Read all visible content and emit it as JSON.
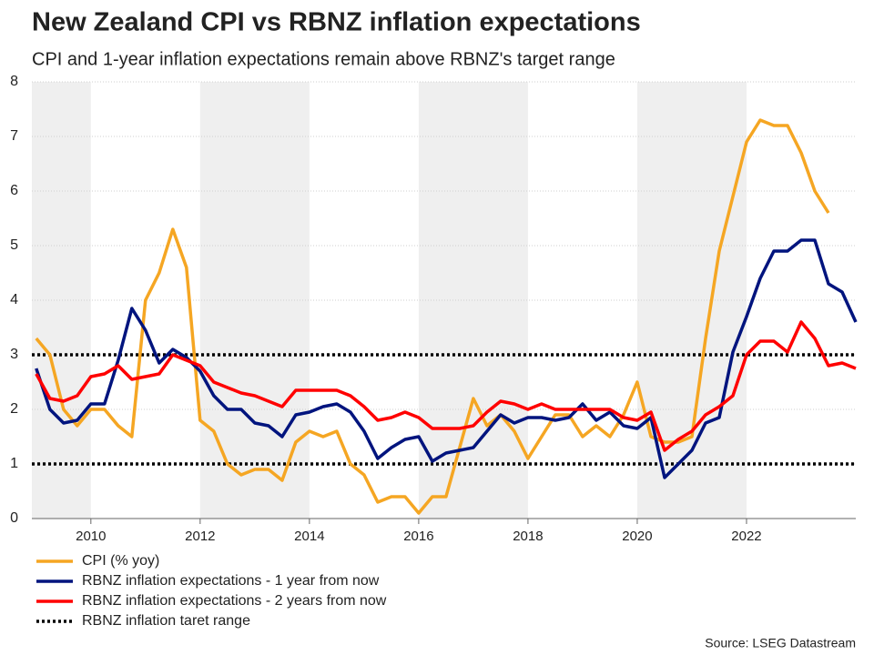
{
  "chart_data": {
    "type": "line",
    "title": "New Zealand CPI vs RBNZ inflation expectations",
    "subtitle": "CPI and 1-year inflation expectations remain above RBNZ's target range",
    "source": "Source: LSEG Datastream",
    "x": [
      2009,
      2009.25,
      2009.5,
      2009.75,
      2010,
      2010.25,
      2010.5,
      2010.75,
      2011,
      2011.25,
      2011.5,
      2011.75,
      2012,
      2012.25,
      2012.5,
      2012.75,
      2013,
      2013.25,
      2013.5,
      2013.75,
      2014,
      2014.25,
      2014.5,
      2014.75,
      2015,
      2015.25,
      2015.5,
      2015.75,
      2016,
      2016.25,
      2016.5,
      2016.75,
      2017,
      2017.25,
      2017.5,
      2017.75,
      2018,
      2018.25,
      2018.5,
      2018.75,
      2019,
      2019.25,
      2019.5,
      2019.75,
      2020,
      2020.25,
      2020.5,
      2020.75,
      2021,
      2021.25,
      2021.5,
      2021.75,
      2022,
      2022.25,
      2022.5,
      2022.75,
      2023,
      2023.25,
      2023.5,
      2023.75,
      2024
    ],
    "series": [
      {
        "name": "CPI (% yoy)",
        "color": "#f5a623",
        "values": [
          3.3,
          3.0,
          2.0,
          1.7,
          2.0,
          2.0,
          1.7,
          1.5,
          4.0,
          4.5,
          5.3,
          4.6,
          1.8,
          1.6,
          1.0,
          0.8,
          0.9,
          0.9,
          0.7,
          1.4,
          1.6,
          1.5,
          1.6,
          1.0,
          0.8,
          0.3,
          0.4,
          0.4,
          0.1,
          0.4,
          0.4,
          1.3,
          2.2,
          1.7,
          1.9,
          1.6,
          1.1,
          1.5,
          1.9,
          1.9,
          1.5,
          1.7,
          1.5,
          1.9,
          2.5,
          1.5,
          1.4,
          1.4,
          1.5,
          3.3,
          4.9,
          5.9,
          6.9,
          7.3,
          7.2,
          7.2,
          6.7,
          6.0,
          5.6,
          null,
          null
        ]
      },
      {
        "name": "RBNZ inflation expectations - 1 year from now",
        "color": "#00147e",
        "values": [
          2.75,
          2.0,
          1.75,
          1.8,
          2.1,
          2.1,
          2.9,
          3.85,
          3.45,
          2.85,
          3.1,
          2.95,
          2.7,
          2.25,
          2.0,
          2.0,
          1.75,
          1.7,
          1.5,
          1.9,
          1.95,
          2.05,
          2.1,
          1.95,
          1.6,
          1.1,
          1.3,
          1.45,
          1.5,
          1.05,
          1.2,
          1.25,
          1.3,
          1.6,
          1.9,
          1.75,
          1.85,
          1.85,
          1.8,
          1.85,
          2.1,
          1.8,
          1.95,
          1.7,
          1.65,
          1.85,
          0.75,
          1.0,
          1.25,
          1.75,
          1.85,
          3.05,
          3.7,
          4.4,
          4.9,
          4.9,
          5.1,
          5.1,
          4.3,
          4.15,
          3.6
        ]
      },
      {
        "name": "RBNZ inflation expectations - 2 years from now",
        "color": "#ff0000",
        "values": [
          2.65,
          2.2,
          2.15,
          2.25,
          2.6,
          2.65,
          2.8,
          2.55,
          2.6,
          2.65,
          3.0,
          2.9,
          2.8,
          2.5,
          2.4,
          2.3,
          2.25,
          2.15,
          2.05,
          2.35,
          2.35,
          2.35,
          2.35,
          2.25,
          2.05,
          1.8,
          1.85,
          1.95,
          1.85,
          1.65,
          1.65,
          1.65,
          1.7,
          1.95,
          2.15,
          2.1,
          2.0,
          2.1,
          2.0,
          2.0,
          2.0,
          2.0,
          2.0,
          1.85,
          1.8,
          1.95,
          1.25,
          1.45,
          1.6,
          1.9,
          2.05,
          2.25,
          3.0,
          3.25,
          3.25,
          3.05,
          3.6,
          3.3,
          2.8,
          2.85,
          2.75
        ]
      }
    ],
    "target_range": {
      "name": "RBNZ inflation taret range",
      "color": "#000000",
      "values": [
        1,
        3
      ]
    },
    "xlim": [
      2008.92,
      2024
    ],
    "xticks": [
      2010,
      2012,
      2014,
      2016,
      2018,
      2020,
      2022
    ],
    "ylim": [
      0,
      8
    ],
    "yticks": [
      0,
      1,
      2,
      3,
      4,
      5,
      6,
      7,
      8
    ],
    "grid": true
  }
}
